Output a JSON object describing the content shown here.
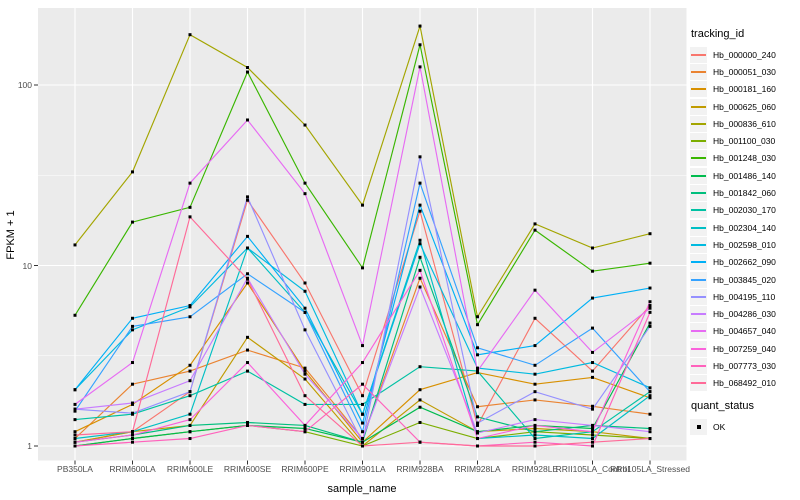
{
  "chart_data": {
    "type": "line",
    "x_label": "sample_name",
    "y_label": "FPKM + 1",
    "y_scale": "log10",
    "y_ticks": [
      1,
      10,
      100
    ],
    "y_minor_ticks": [
      3.162,
      31.62
    ],
    "ylim": [
      0.83,
      260
    ],
    "grid": "on",
    "panel_background": "#ebebeb",
    "gridline_color": "#ffffff",
    "point_color": "#000000",
    "categories": [
      "PB350LA",
      "RRIM600LA",
      "RRIM600LE",
      "RRIM600SE",
      "RRIM600PE",
      "RRIM901LA",
      "RRIM928BA",
      "RRIM928LA",
      "RRIM928LE",
      "RRII105LA_Control",
      "RRII105LA_Stressed"
    ],
    "legend": {
      "title": "tracking_id",
      "position": "right"
    },
    "legend2": {
      "title": "quant_status",
      "items": [
        {
          "label": "OK",
          "marker": "black-square"
        }
      ]
    },
    "series": [
      {
        "name": "Hb_000000_240",
        "color": "#F8766D",
        "values": [
          1.05,
          1.2,
          2.0,
          23,
          8.0,
          1.9,
          20,
          1.3,
          5.1,
          2.6,
          6.0
        ]
      },
      {
        "name": "Hb_000051_030",
        "color": "#EA8331",
        "values": [
          1.1,
          2.2,
          2.6,
          3.4,
          2.7,
          1.1,
          8.5,
          1.65,
          1.8,
          1.66,
          1.5
        ]
      },
      {
        "name": "Hb_000181_160",
        "color": "#D89000",
        "values": [
          1.2,
          1.7,
          2.8,
          8.0,
          2.6,
          1.05,
          2.05,
          2.55,
          2.2,
          2.4,
          1.85
        ]
      },
      {
        "name": "Hb_000625_060",
        "color": "#C09B00",
        "values": [
          1.05,
          1.2,
          1.3,
          4.0,
          2.35,
          1.0,
          1.8,
          1.2,
          1.25,
          1.2,
          1.1
        ]
      },
      {
        "name": "Hb_000836_610",
        "color": "#A3A500",
        "values": [
          13,
          33,
          190,
          125,
          60,
          21.6,
          212,
          5.2,
          17,
          12.5,
          15
        ]
      },
      {
        "name": "Hb_001100_030",
        "color": "#7CAE00",
        "values": [
          1.0,
          1.1,
          1.2,
          1.3,
          1.2,
          1.0,
          1.35,
          1.1,
          1.2,
          1.15,
          1.1
        ]
      },
      {
        "name": "Hb_001248_030",
        "color": "#39B600",
        "values": [
          5.3,
          17.4,
          21,
          118,
          28.6,
          9.7,
          167,
          4.7,
          15.7,
          9.3,
          10.3
        ]
      },
      {
        "name": "Hb_001486_140",
        "color": "#00BB4E",
        "values": [
          1.0,
          1.1,
          1.2,
          1.3,
          1.25,
          1.05,
          1.64,
          1.2,
          1.3,
          1.25,
          4.8
        ]
      },
      {
        "name": "Hb_001842_060",
        "color": "#00BF7D",
        "values": [
          1.05,
          1.15,
          1.3,
          1.35,
          1.3,
          1.05,
          11.1,
          1.45,
          1.2,
          1.3,
          1.25
        ]
      },
      {
        "name": "Hb_002030_170",
        "color": "#00C1A3",
        "values": [
          1.4,
          1.5,
          1.9,
          2.6,
          1.7,
          1.7,
          2.75,
          2.6,
          1.1,
          1.2,
          2.0
        ]
      },
      {
        "name": "Hb_002304_140",
        "color": "#00BFC4",
        "values": [
          1.1,
          1.2,
          1.5,
          12.5,
          5.5,
          1.5,
          13.8,
          1.1,
          1.15,
          1.1,
          1.9
        ]
      },
      {
        "name": "Hb_002598_010",
        "color": "#00BAE0",
        "values": [
          2.05,
          4.4,
          5.9,
          12.5,
          7.2,
          1.5,
          13.2,
          2.7,
          2.5,
          2.9,
          2.1
        ]
      },
      {
        "name": "Hb_002662_090",
        "color": "#00B0F6",
        "values": [
          2.05,
          5.1,
          6.0,
          14.5,
          5.8,
          1.34,
          21.6,
          3.2,
          3.6,
          6.6,
          7.5
        ]
      },
      {
        "name": "Hb_003845_020",
        "color": "#35A2FF",
        "values": [
          1.56,
          4.6,
          5.2,
          9.0,
          5.5,
          1.2,
          28.6,
          3.5,
          2.8,
          4.5,
          2.0
        ]
      },
      {
        "name": "Hb_004195_110",
        "color": "#9590FF",
        "values": [
          1.6,
          1.52,
          2.0,
          24,
          4.4,
          1.05,
          40,
          1.34,
          2.0,
          1.6,
          4.6
        ]
      },
      {
        "name": "Hb_004286_030",
        "color": "#C77CFF",
        "values": [
          1.6,
          1.73,
          2.3,
          8.5,
          2.5,
          1.1,
          7.6,
          1.18,
          1.4,
          1.3,
          1.2
        ]
      },
      {
        "name": "Hb_004657_040",
        "color": "#E76BF3",
        "values": [
          1.7,
          2.9,
          28.6,
          64,
          25,
          3.6,
          126,
          2.6,
          7.3,
          3.3,
          5.8
        ]
      },
      {
        "name": "Hb_007259_040",
        "color": "#FA62DB",
        "values": [
          1.05,
          1.15,
          1.4,
          2.9,
          1.3,
          2.9,
          9.4,
          1.1,
          1.3,
          1.2,
          6.3
        ]
      },
      {
        "name": "Hb_007773_030",
        "color": "#FF62BC",
        "values": [
          1.0,
          1.05,
          1.1,
          1.3,
          1.2,
          2.2,
          1.05,
          1.0,
          1.05,
          1.0,
          5.5
        ]
      },
      {
        "name": "Hb_068492_010",
        "color": "#FF6A98",
        "values": [
          1.15,
          1.2,
          18.6,
          8.4,
          1.9,
          1.0,
          1.05,
          1.0,
          1.0,
          1.05,
          1.1
        ]
      }
    ]
  }
}
